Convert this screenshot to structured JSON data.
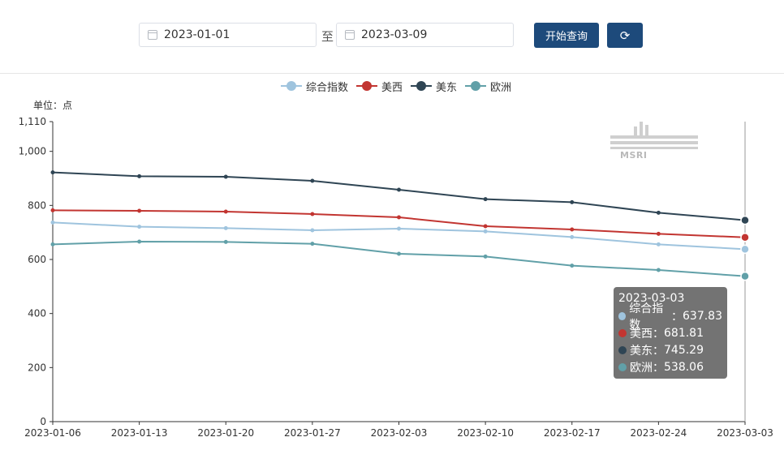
{
  "query": {
    "start_date": "2023-01-01",
    "separator": "至",
    "end_date": "2023-03-09",
    "submit_label": "开始查询",
    "refresh_icon": "refresh-icon"
  },
  "colors": {
    "accent": "#1d4a7b",
    "series": [
      "#9fc4de",
      "#c23531",
      "#2f4554",
      "#61a0a8"
    ]
  },
  "chart_data": {
    "type": "line",
    "unit_label": "单位：点",
    "x": [
      "2023-01-06",
      "2023-01-13",
      "2023-01-20",
      "2023-01-27",
      "2023-02-03",
      "2023-02-10",
      "2023-02-17",
      "2023-02-24",
      "2023-03-03"
    ],
    "ylim": [
      0,
      1110
    ],
    "yticks": [
      "0",
      "200",
      "400",
      "600",
      "800",
      "1,000",
      "1,110"
    ],
    "ytick_values": [
      0,
      200,
      400,
      600,
      800,
      1000,
      1110
    ],
    "series": [
      {
        "name": "综合指数",
        "values": [
          737,
          721,
          716,
          708,
          714,
          704,
          683,
          656,
          637.83
        ]
      },
      {
        "name": "美西",
        "values": [
          782,
          780,
          777,
          768,
          756,
          723,
          711,
          695,
          681.81
        ]
      },
      {
        "name": "美东",
        "values": [
          922,
          908,
          906,
          891,
          858,
          823,
          812,
          773,
          745.29
        ]
      },
      {
        "name": "欧洲",
        "values": [
          656,
          666,
          665,
          658,
          621,
          611,
          577,
          561,
          538.06
        ]
      }
    ],
    "legend_position": "top-center",
    "tooltip": {
      "title": "2023-03-03",
      "rows": [
        {
          "name": "综合指数",
          "value": "637.83"
        },
        {
          "name": "美西",
          "value": "681.81"
        },
        {
          "name": "美东",
          "value": "745.29"
        },
        {
          "name": "欧洲",
          "value": "538.06"
        }
      ]
    },
    "watermark": "MSRI"
  }
}
